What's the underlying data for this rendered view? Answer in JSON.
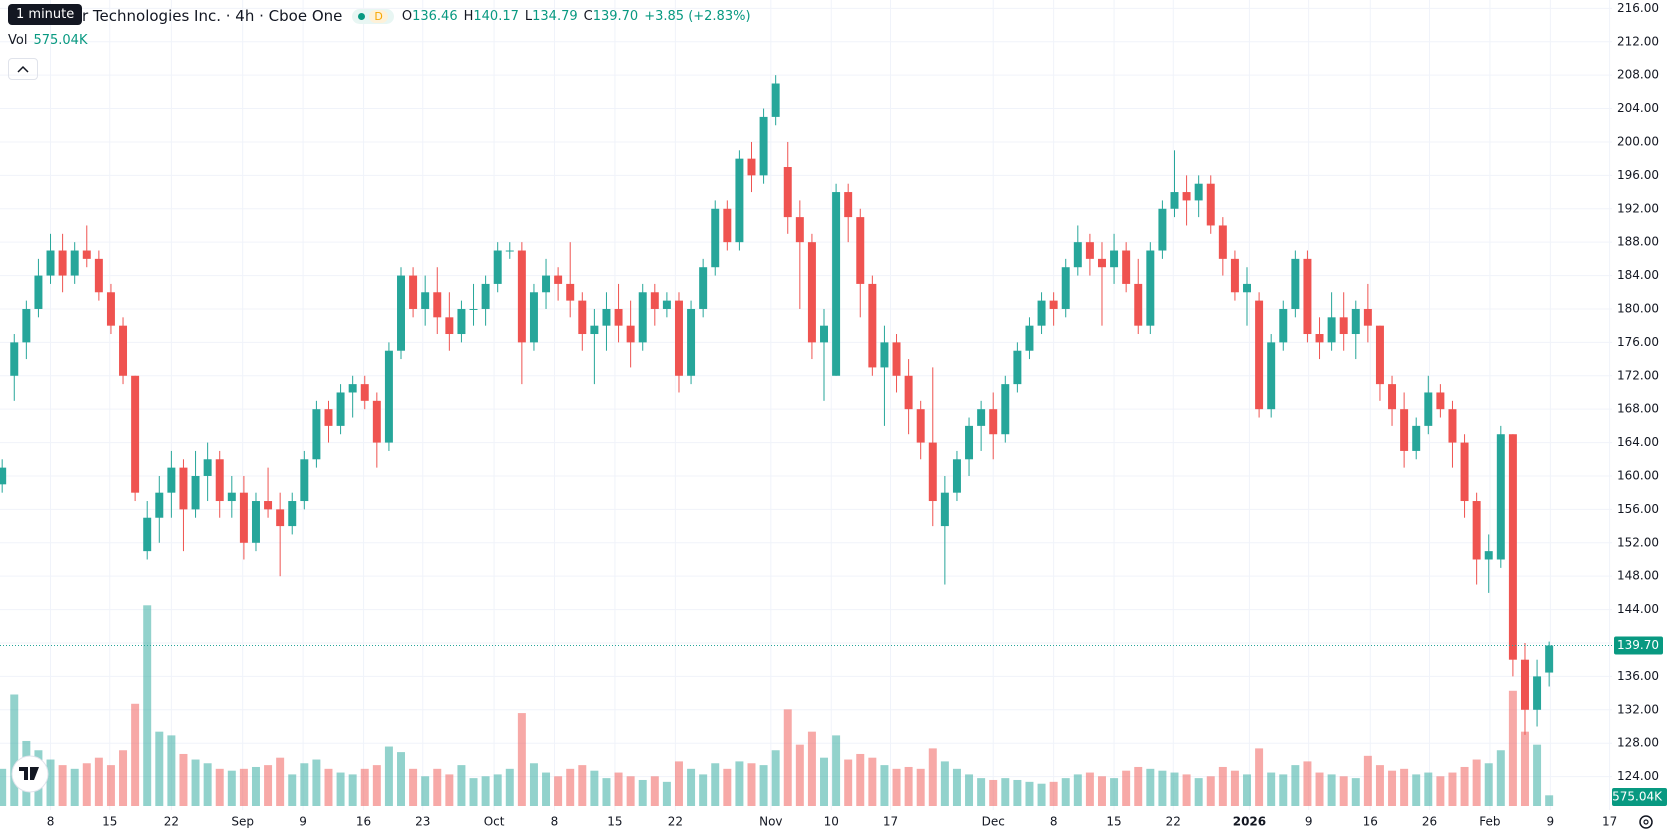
{
  "header": {
    "tooltip": "1 minute",
    "title": "r Technologies Inc. · 4h · Cboe One",
    "badge": "D",
    "ohlc_labels": [
      "O",
      "H",
      "L",
      "C"
    ],
    "change": "+3.85 (+2.83%)",
    "volume_label": "Vol"
  },
  "chart_data": {
    "type": "candlestick",
    "ohlc": [
      [
        159,
        162,
        158,
        161
      ],
      [
        172,
        177,
        169,
        176
      ],
      [
        176,
        181,
        174,
        180
      ],
      [
        180,
        186,
        179,
        184
      ],
      [
        184,
        189,
        183,
        187
      ],
      [
        187,
        189,
        182,
        184
      ],
      [
        184,
        188,
        183,
        187
      ],
      [
        187,
        190,
        185,
        186
      ],
      [
        186,
        187,
        181,
        182
      ],
      [
        182,
        183,
        177,
        178
      ],
      [
        178,
        179,
        171,
        172
      ],
      [
        172,
        172,
        157,
        158
      ],
      [
        151,
        157,
        150,
        155
      ],
      [
        155,
        160,
        152,
        158
      ],
      [
        158,
        163,
        155,
        161
      ],
      [
        161,
        162,
        151,
        156
      ],
      [
        156,
        163,
        155,
        160
      ],
      [
        160,
        164,
        157,
        162
      ],
      [
        162,
        163,
        155,
        157
      ],
      [
        157,
        160,
        155,
        158
      ],
      [
        158,
        160,
        150,
        152
      ],
      [
        152,
        158,
        151,
        157
      ],
      [
        157,
        161,
        155,
        156
      ],
      [
        156,
        158,
        148,
        154
      ],
      [
        154,
        158,
        153,
        157
      ],
      [
        157,
        163,
        156,
        162
      ],
      [
        162,
        169,
        161,
        168
      ],
      [
        168,
        169,
        164,
        166
      ],
      [
        166,
        171,
        165,
        170
      ],
      [
        170,
        172,
        167,
        171
      ],
      [
        171,
        172,
        168,
        169
      ],
      [
        169,
        170,
        161,
        164
      ],
      [
        164,
        176,
        163,
        175
      ],
      [
        175,
        185,
        174,
        184
      ],
      [
        184,
        185,
        179,
        180
      ],
      [
        180,
        184,
        178,
        182
      ],
      [
        182,
        185,
        177,
        179
      ],
      [
        179,
        182,
        175,
        177
      ],
      [
        177,
        181,
        176,
        180
      ],
      [
        180,
        183,
        178,
        180
      ],
      [
        180,
        184,
        178,
        183
      ],
      [
        183,
        188,
        182,
        187
      ],
      [
        187,
        188,
        186,
        187
      ],
      [
        187,
        188,
        171,
        176
      ],
      [
        176,
        183,
        175,
        182
      ],
      [
        182,
        186,
        180,
        184
      ],
      [
        184,
        185,
        181,
        183
      ],
      [
        183,
        188,
        179,
        181
      ],
      [
        181,
        182,
        175,
        177
      ],
      [
        177,
        180,
        171,
        178
      ],
      [
        178,
        182,
        175,
        180
      ],
      [
        180,
        183,
        176,
        178
      ],
      [
        178,
        181,
        173,
        176
      ],
      [
        176,
        183,
        175,
        182
      ],
      [
        182,
        183,
        178,
        180
      ],
      [
        180,
        182,
        179,
        181
      ],
      [
        181,
        182,
        170,
        172
      ],
      [
        172,
        181,
        171,
        180
      ],
      [
        180,
        186,
        179,
        185
      ],
      [
        185,
        193,
        184,
        192
      ],
      [
        192,
        193,
        187,
        188
      ],
      [
        188,
        199,
        187,
        198
      ],
      [
        198,
        200,
        194,
        196
      ],
      [
        196,
        204,
        195,
        203
      ],
      [
        203,
        208,
        202,
        207
      ],
      [
        197,
        200,
        189,
        191
      ],
      [
        191,
        193,
        180,
        188
      ],
      [
        188,
        189,
        174,
        176
      ],
      [
        176,
        180,
        169,
        178
      ],
      [
        172,
        195,
        172,
        194
      ],
      [
        194,
        195,
        188,
        191
      ],
      [
        191,
        192,
        179,
        183
      ],
      [
        183,
        184,
        172,
        173
      ],
      [
        173,
        178,
        166,
        176
      ],
      [
        176,
        177,
        170,
        172
      ],
      [
        172,
        174,
        165,
        168
      ],
      [
        168,
        169,
        162,
        164
      ],
      [
        164,
        173,
        154,
        157
      ],
      [
        154,
        160,
        147,
        158
      ],
      [
        158,
        163,
        157,
        162
      ],
      [
        162,
        167,
        160,
        166
      ],
      [
        166,
        169,
        163,
        168
      ],
      [
        168,
        170,
        162,
        165
      ],
      [
        165,
        172,
        164,
        171
      ],
      [
        171,
        176,
        170,
        175
      ],
      [
        175,
        179,
        174,
        178
      ],
      [
        178,
        182,
        177,
        181
      ],
      [
        181,
        182,
        178,
        180
      ],
      [
        180,
        186,
        179,
        185
      ],
      [
        185,
        190,
        184,
        188
      ],
      [
        188,
        189,
        184,
        186
      ],
      [
        186,
        188,
        178,
        185
      ],
      [
        185,
        189,
        183,
        187
      ],
      [
        187,
        188,
        182,
        183
      ],
      [
        183,
        186,
        177,
        178
      ],
      [
        178,
        188,
        177,
        187
      ],
      [
        187,
        193,
        186,
        192
      ],
      [
        192,
        199,
        191,
        194
      ],
      [
        194,
        196,
        190,
        193
      ],
      [
        193,
        196,
        191,
        195
      ],
      [
        195,
        196,
        189,
        190
      ],
      [
        190,
        191,
        184,
        186
      ],
      [
        186,
        187,
        181,
        182
      ],
      [
        182,
        185,
        178,
        183
      ],
      [
        181,
        182,
        167,
        168
      ],
      [
        168,
        177,
        167,
        176
      ],
      [
        176,
        181,
        175,
        180
      ],
      [
        180,
        187,
        179,
        186
      ],
      [
        186,
        187,
        176,
        177
      ],
      [
        177,
        179,
        174,
        176
      ],
      [
        176,
        182,
        175,
        179
      ],
      [
        179,
        182,
        175,
        177
      ],
      [
        177,
        181,
        174,
        180
      ],
      [
        180,
        183,
        176,
        178
      ],
      [
        178,
        178,
        169,
        171
      ],
      [
        171,
        172,
        166,
        168
      ],
      [
        168,
        170,
        161,
        163
      ],
      [
        163,
        167,
        162,
        166
      ],
      [
        166,
        172,
        165,
        170
      ],
      [
        170,
        171,
        167,
        168
      ],
      [
        168,
        169,
        161,
        164
      ],
      [
        164,
        165,
        155,
        157
      ],
      [
        157,
        158,
        147,
        150
      ],
      [
        150,
        153,
        146,
        151
      ],
      [
        150,
        166,
        149,
        165
      ],
      [
        165,
        165,
        136,
        138
      ],
      [
        138,
        140,
        129,
        132
      ],
      [
        132,
        138,
        130,
        136
      ],
      [
        136.46,
        140.17,
        134.79,
        139.7
      ]
    ],
    "volume": [
      2000000,
      6000000,
      3500000,
      3000000,
      2500000,
      2200000,
      2000000,
      2300000,
      2600000,
      2200000,
      3000000,
      5500000,
      10800000,
      4000000,
      3800000,
      2800000,
      2500000,
      2300000,
      2000000,
      1900000,
      2000000,
      2100000,
      2200000,
      2600000,
      1700000,
      2300000,
      2500000,
      2000000,
      1800000,
      1700000,
      2000000,
      2200000,
      3200000,
      2900000,
      2000000,
      1600000,
      2000000,
      1700000,
      2200000,
      1500000,
      1600000,
      1700000,
      2000000,
      5000000,
      2300000,
      1800000,
      1600000,
      2000000,
      2200000,
      1900000,
      1500000,
      1800000,
      1600000,
      1400000,
      1600000,
      1300000,
      2400000,
      2000000,
      1700000,
      2300000,
      2000000,
      2400000,
      2300000,
      2200000,
      3000000,
      5200000,
      3300000,
      4000000,
      2600000,
      3800000,
      2500000,
      2800000,
      2600000,
      2200000,
      2000000,
      2100000,
      2000000,
      3100000,
      2400000,
      2000000,
      1700000,
      1500000,
      1400000,
      1500000,
      1400000,
      1300000,
      1200000,
      1300000,
      1500000,
      1700000,
      1800000,
      1600000,
      1500000,
      1900000,
      2100000,
      2000000,
      1900000,
      1800000,
      1700000,
      1500000,
      1600000,
      2100000,
      1900000,
      1700000,
      3100000,
      1800000,
      1700000,
      2200000,
      2400000,
      1800000,
      1700000,
      1600000,
      1500000,
      2700000,
      2200000,
      1900000,
      2000000,
      1700000,
      1800000,
      1600000,
      1800000,
      2100000,
      2500000,
      2300000,
      3000000,
      6200000,
      4000000,
      3300000,
      575040
    ],
    "volume_last_label": "575.04K",
    "last_close_label": "139.70",
    "colors": {
      "up": "#26a69a",
      "down": "#ef5350"
    },
    "ylim": [
      120,
      217
    ],
    "yticks": [
      {
        "value": 124,
        "label": "124.00"
      },
      {
        "value": 128,
        "label": "128.00"
      },
      {
        "value": 132,
        "label": "132.00"
      },
      {
        "value": 136,
        "label": "136.00"
      },
      {
        "value": 140,
        "label": "140.00"
      },
      {
        "value": 144,
        "label": "144.00"
      },
      {
        "value": 148,
        "label": "148.00"
      },
      {
        "value": 152,
        "label": "152.00"
      },
      {
        "value": 156,
        "label": "156.00"
      },
      {
        "value": 160,
        "label": "160.00"
      },
      {
        "value": 164,
        "label": "164.00"
      },
      {
        "value": 168,
        "label": "168.00"
      },
      {
        "value": 172,
        "label": "172.00"
      },
      {
        "value": 176,
        "label": "176.00"
      },
      {
        "value": 180,
        "label": "180.00"
      },
      {
        "value": 184,
        "label": "184.00"
      },
      {
        "value": 188,
        "label": "188.00"
      },
      {
        "value": 192,
        "label": "192.00"
      },
      {
        "value": 196,
        "label": "196.00"
      },
      {
        "value": 200,
        "label": "200.00"
      },
      {
        "value": 204,
        "label": "204.00"
      },
      {
        "value": 208,
        "label": "208.00"
      },
      {
        "value": 212,
        "label": "212.00"
      },
      {
        "value": 216,
        "label": "216.00"
      }
    ],
    "xlim": [
      -0.18,
      133.2
    ],
    "xticks": [
      {
        "value": 4,
        "label": "8"
      },
      {
        "value": 8.9,
        "label": "15"
      },
      {
        "value": 14,
        "label": "22"
      },
      {
        "value": 19.9,
        "label": "Sep"
      },
      {
        "value": 24.9,
        "label": "9"
      },
      {
        "value": 29.9,
        "label": "16"
      },
      {
        "value": 34.8,
        "label": "23"
      },
      {
        "value": 40.7,
        "label": "Oct"
      },
      {
        "value": 45.7,
        "label": "8"
      },
      {
        "value": 50.7,
        "label": "15"
      },
      {
        "value": 55.7,
        "label": "22"
      },
      {
        "value": 63.6,
        "label": "Nov"
      },
      {
        "value": 68.6,
        "label": "10"
      },
      {
        "value": 73.5,
        "label": "17"
      },
      {
        "value": 82,
        "label": "Dec"
      },
      {
        "value": 87,
        "label": "8"
      },
      {
        "value": 92,
        "label": "15"
      },
      {
        "value": 96.9,
        "label": "22"
      },
      {
        "value": 103.2,
        "label": "2026"
      },
      {
        "value": 108.1,
        "label": "9"
      },
      {
        "value": 113.2,
        "label": "16"
      },
      {
        "value": 118.1,
        "label": "26"
      },
      {
        "value": 123.1,
        "label": "Feb"
      },
      {
        "value": 128.1,
        "label": "9"
      },
      {
        "value": 133,
        "label": "17"
      }
    ],
    "volume_ylim": [
      0,
      12000000
    ],
    "grid": true,
    "last_price_line": true
  }
}
